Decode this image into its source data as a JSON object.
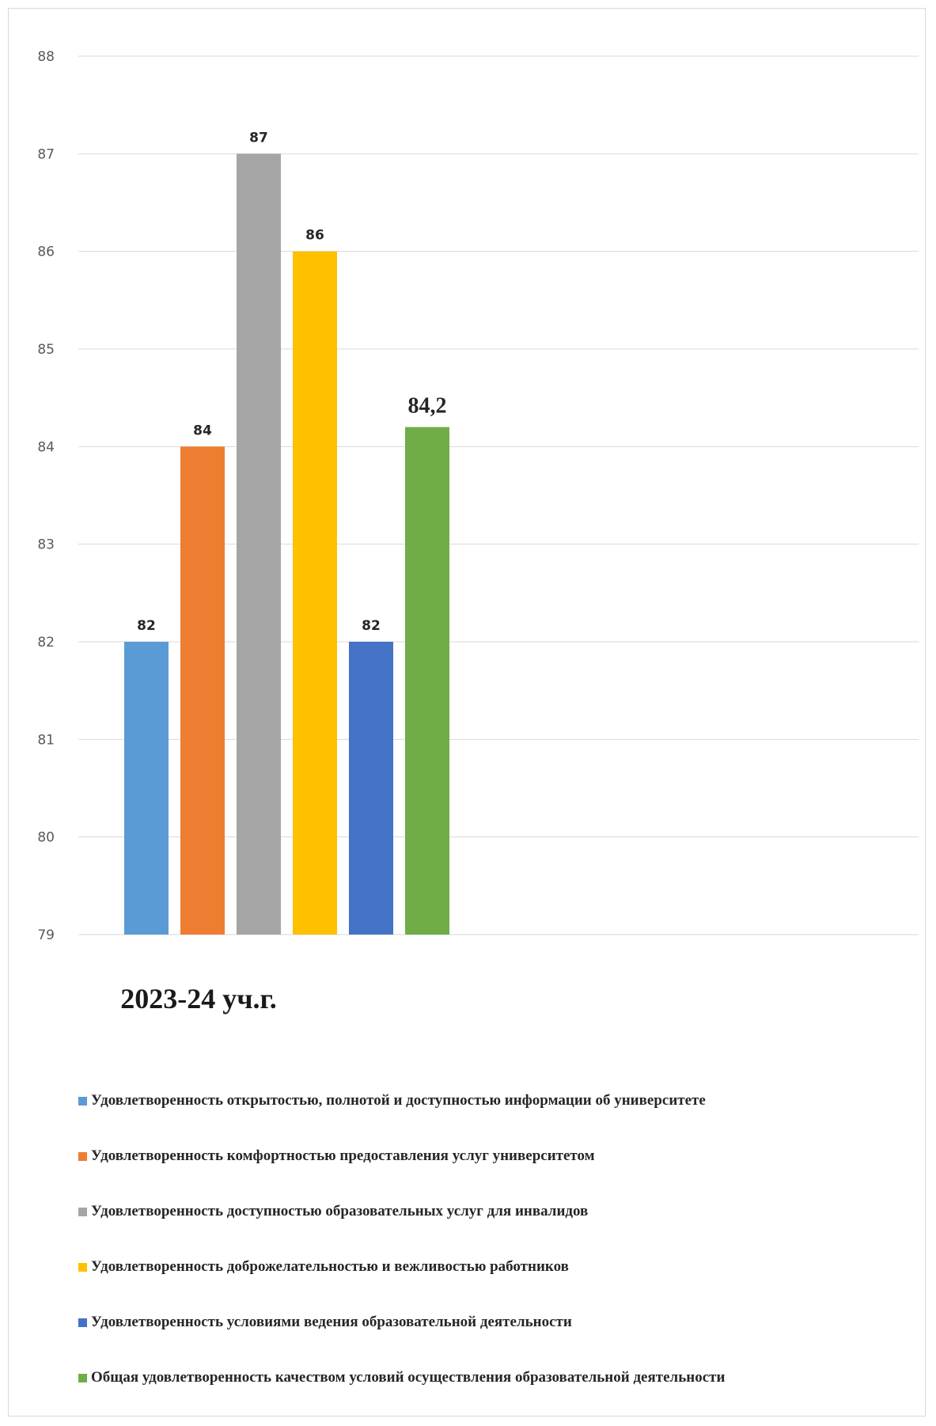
{
  "chart_data": {
    "type": "bar",
    "categories": [
      "2023-24 уч.г."
    ],
    "ylim": [
      79,
      88
    ],
    "yticks": [
      "79",
      "80",
      "81",
      "82",
      "83",
      "84",
      "85",
      "86",
      "87",
      "88"
    ],
    "grid": true,
    "legend_position": "bottom",
    "series": [
      {
        "name": "Удовлетворенность открытостью, полнотой и доступностью информации об университете",
        "values": [
          82
        ],
        "label": "82",
        "color": "#5b9bd5"
      },
      {
        "name": "Удовлетворенность комфортностью предоставления услуг университетом",
        "values": [
          84
        ],
        "label": "84",
        "color": "#ed7d31"
      },
      {
        "name": "Удовлетворенность доступностью образовательных услуг для инвалидов",
        "values": [
          87
        ],
        "label": "87",
        "color": "#a5a5a5"
      },
      {
        "name": "Удовлетворенность доброжелательностью и вежливостью работников",
        "values": [
          86
        ],
        "label": "86",
        "color": "#ffc000"
      },
      {
        "name": "Удовлетворенность условиями ведения образовательной деятельности",
        "values": [
          82
        ],
        "label": "82",
        "color": "#4472c4"
      },
      {
        "name": "Общая удовлетворенность качеством условий осуществления образовательной деятельности",
        "values": [
          84.2
        ],
        "label": "84,2",
        "color": "#70ad47"
      }
    ]
  }
}
